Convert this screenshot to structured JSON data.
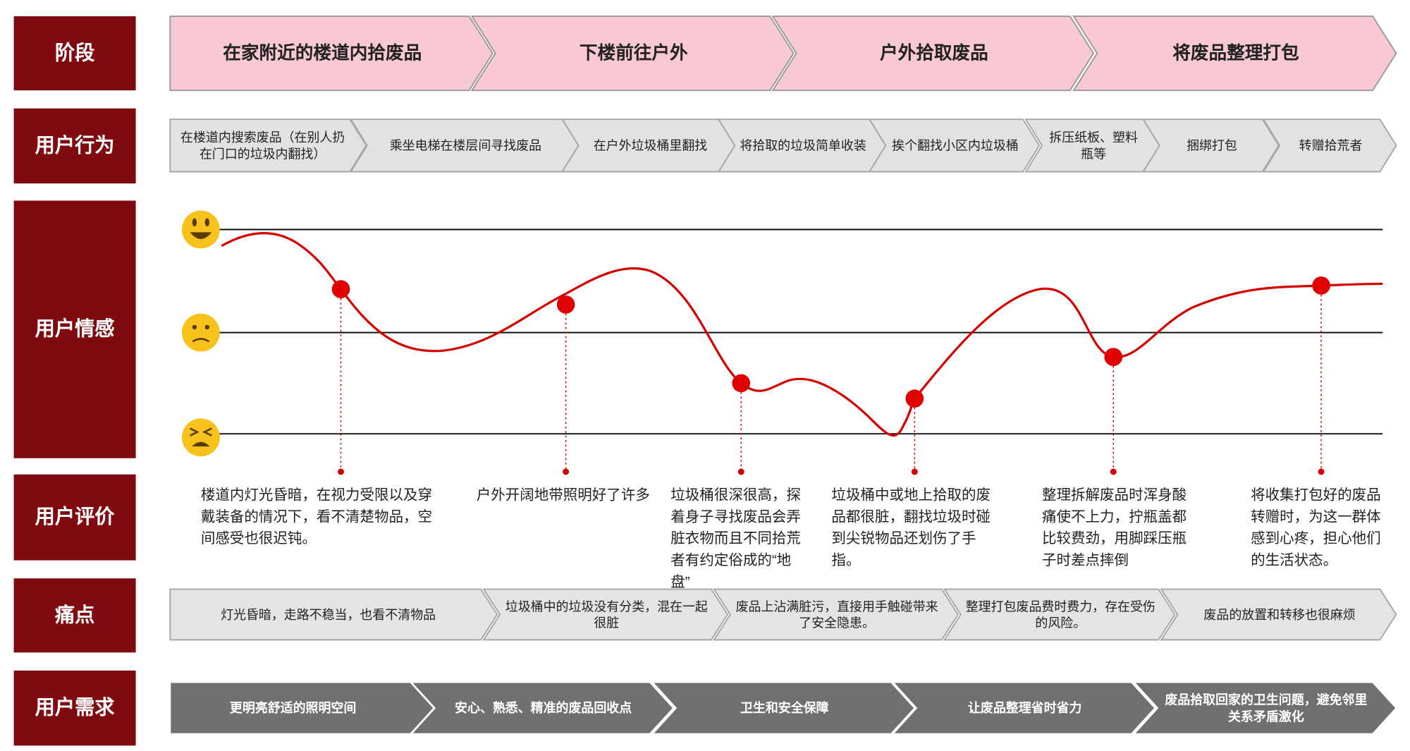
{
  "row_labels": [
    "阶段",
    "用户行为",
    "用户情感",
    "用户评价",
    "痛点",
    "用户需求"
  ],
  "stages": [
    "在家附近的楼道内拾废品",
    "下楼前往户外",
    "户外拾取废品",
    "将废品整理打包"
  ],
  "behaviors": [
    "在楼道内搜索废品（在别人扔在门口的垃圾内翻找）",
    "乘坐电梯在楼层间寻找废品",
    "在户外垃圾桶里翻找",
    "将拾取的垃圾简单收装",
    "挨个翻找小区内垃圾桶",
    "拆压纸板、塑料瓶等",
    "捆绑打包",
    "转赠拾荒者"
  ],
  "comments": [
    "楼道内灯光昏暗，在视力受限以及穿戴装备的情况下，看不清楚物品，空间感受也很迟钝。",
    "户外开阔地带照明好了许多",
    "垃圾桶很深很高，探着身子寻找废品会弄脏衣物而且不同拾荒者有约定俗成的“地盘”",
    "垃圾桶中或地上拾取的废品都很脏，翻找垃圾时碰到尖锐物品还划伤了手指。",
    "整理拆解废品时浑身酸痛使不上力，拧瓶盖都比较费劲，用脚踩压瓶子时差点摔倒",
    "将收集打包好的废品转赠时，为这一群体感到心疼，担心他们的生活状态。"
  ],
  "pain_points": [
    "灯光昏暗，走路不稳当，也看不清物品",
    "垃圾桶中的垃圾没有分类，混在一起很脏",
    "废品上沾满脏污，直接用手触碰带来了安全隐患。",
    "整理打包废品费时费力，存在受伤的风险。",
    "废品的放置和转移也很麻烦"
  ],
  "needs": [
    "更明亮舒适的照明空间",
    "安心、熟悉、精准的废品回收点",
    "卫生和安全保障",
    "让废品整理省时省力",
    "废品拾取回家的卫生问题，避免邻里关系矛盾激化"
  ]
}
